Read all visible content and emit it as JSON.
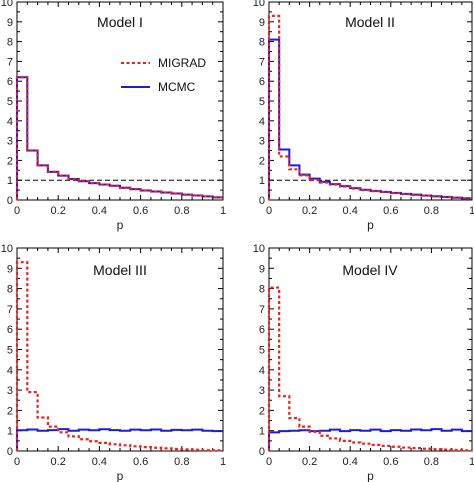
{
  "chart_data": [
    {
      "type": "line",
      "title": "Model I",
      "xlabel": "p",
      "ylabel": "",
      "xlim": [
        0,
        1
      ],
      "ylim": [
        0,
        10
      ],
      "xticks": [
        "0",
        "0.2",
        "0.4",
        "0.6",
        "0.8",
        "1"
      ],
      "yticks": [
        "0",
        "1",
        "2",
        "3",
        "4",
        "5",
        "6",
        "7",
        "8",
        "9",
        "10"
      ],
      "reference_line": 1,
      "bin_edges": [
        0,
        0.05,
        0.1,
        0.15,
        0.2,
        0.25,
        0.3,
        0.35,
        0.4,
        0.45,
        0.5,
        0.55,
        0.6,
        0.65,
        0.7,
        0.75,
        0.8,
        0.85,
        0.9,
        0.95,
        1.0
      ],
      "legend": {
        "show": true,
        "position": "upper-middle"
      },
      "series": [
        {
          "name": "MIGRAD",
          "color": "#e8231f",
          "style": "dotted",
          "values": [
            6.2,
            2.5,
            1.75,
            1.42,
            1.23,
            1.06,
            0.95,
            0.85,
            0.78,
            0.72,
            0.62,
            0.55,
            0.48,
            0.43,
            0.38,
            0.33,
            0.27,
            0.23,
            0.18,
            0.13
          ]
        },
        {
          "name": "MCMC",
          "color": "#1a1ae6",
          "style": "solid",
          "values": [
            6.2,
            2.5,
            1.75,
            1.42,
            1.23,
            1.06,
            0.95,
            0.85,
            0.78,
            0.72,
            0.62,
            0.55,
            0.48,
            0.43,
            0.38,
            0.33,
            0.27,
            0.23,
            0.18,
            0.13
          ]
        }
      ]
    },
    {
      "type": "line",
      "title": "Model II",
      "xlabel": "p",
      "ylabel": "",
      "xlim": [
        0,
        1
      ],
      "ylim": [
        0,
        10
      ],
      "xticks": [
        "0",
        "0.2",
        "0.4",
        "0.6",
        "0.8",
        "1"
      ],
      "yticks": [
        "0",
        "1",
        "2",
        "3",
        "4",
        "5",
        "6",
        "7",
        "8",
        "9",
        "10"
      ],
      "reference_line": 1,
      "bin_edges": [
        0,
        0.05,
        0.1,
        0.15,
        0.2,
        0.25,
        0.3,
        0.35,
        0.4,
        0.45,
        0.5,
        0.55,
        0.6,
        0.65,
        0.7,
        0.75,
        0.8,
        0.85,
        0.9,
        0.95,
        1.0
      ],
      "legend": {
        "show": false
      },
      "series": [
        {
          "name": "MIGRAD",
          "color": "#e8231f",
          "style": "dotted",
          "values": [
            9.3,
            2.2,
            1.55,
            1.25,
            1.0,
            0.88,
            0.78,
            0.68,
            0.58,
            0.5,
            0.45,
            0.4,
            0.35,
            0.3,
            0.26,
            0.22,
            0.18,
            0.15,
            0.11,
            0.08
          ]
        },
        {
          "name": "MCMC",
          "color": "#1a1ae6",
          "style": "solid",
          "values": [
            8.1,
            2.55,
            1.75,
            1.28,
            1.08,
            0.92,
            0.8,
            0.7,
            0.6,
            0.52,
            0.46,
            0.41,
            0.36,
            0.31,
            0.27,
            0.23,
            0.19,
            0.15,
            0.12,
            0.09
          ]
        }
      ]
    },
    {
      "type": "line",
      "title": "Model III",
      "xlabel": "p",
      "ylabel": "",
      "xlim": [
        0,
        1
      ],
      "ylim": [
        0,
        10
      ],
      "xticks": [
        "0",
        "0.2",
        "0.4",
        "0.6",
        "0.8",
        "1"
      ],
      "yticks": [
        "0",
        "1",
        "2",
        "3",
        "4",
        "5",
        "6",
        "7",
        "8",
        "9",
        "10"
      ],
      "reference_line": null,
      "bin_edges": [
        0,
        0.05,
        0.1,
        0.15,
        0.2,
        0.25,
        0.3,
        0.35,
        0.4,
        0.45,
        0.5,
        0.55,
        0.6,
        0.65,
        0.7,
        0.75,
        0.8,
        0.85,
        0.9,
        0.95,
        1.0
      ],
      "legend": {
        "show": false
      },
      "series": [
        {
          "name": "MIGRAD",
          "color": "#e8231f",
          "style": "dotted",
          "values": [
            9.3,
            2.9,
            1.65,
            1.2,
            0.92,
            0.72,
            0.58,
            0.48,
            0.4,
            0.33,
            0.28,
            0.23,
            0.19,
            0.16,
            0.13,
            0.1,
            0.08,
            0.06,
            0.04,
            0.03
          ]
        },
        {
          "name": "MCMC",
          "color": "#1a1ae6",
          "style": "solid",
          "values": [
            1.02,
            1.06,
            1.0,
            1.03,
            1.08,
            1.0,
            1.05,
            1.02,
            1.07,
            1.03,
            1.0,
            1.05,
            1.02,
            1.06,
            1.0,
            1.04,
            1.02,
            1.05,
            1.0,
            0.98
          ]
        }
      ]
    },
    {
      "type": "line",
      "title": "Model IV",
      "xlabel": "p",
      "ylabel": "",
      "xlim": [
        0,
        1
      ],
      "ylim": [
        0,
        10
      ],
      "xticks": [
        "0",
        "0.2",
        "0.4",
        "0.6",
        "0.8",
        "1"
      ],
      "yticks": [
        "0",
        "1",
        "2",
        "3",
        "4",
        "5",
        "6",
        "7",
        "8",
        "9",
        "10"
      ],
      "reference_line": null,
      "bin_edges": [
        0,
        0.05,
        0.1,
        0.15,
        0.2,
        0.25,
        0.3,
        0.35,
        0.4,
        0.45,
        0.5,
        0.55,
        0.6,
        0.65,
        0.7,
        0.75,
        0.8,
        0.85,
        0.9,
        0.95,
        1.0
      ],
      "legend": {
        "show": false
      },
      "series": [
        {
          "name": "MIGRAD",
          "color": "#e8231f",
          "style": "dotted",
          "values": [
            8.05,
            2.7,
            1.62,
            1.2,
            0.95,
            0.75,
            0.62,
            0.5,
            0.42,
            0.36,
            0.3,
            0.25,
            0.21,
            0.17,
            0.14,
            0.11,
            0.09,
            0.07,
            0.05,
            0.03
          ]
        },
        {
          "name": "MCMC",
          "color": "#1a1ae6",
          "style": "solid",
          "values": [
            0.92,
            0.98,
            1.0,
            1.02,
            0.98,
            1.0,
            1.05,
            0.98,
            1.03,
            1.0,
            1.05,
            0.98,
            1.03,
            1.0,
            1.06,
            1.02,
            1.08,
            1.0,
            1.05,
            0.98
          ]
        }
      ]
    }
  ]
}
